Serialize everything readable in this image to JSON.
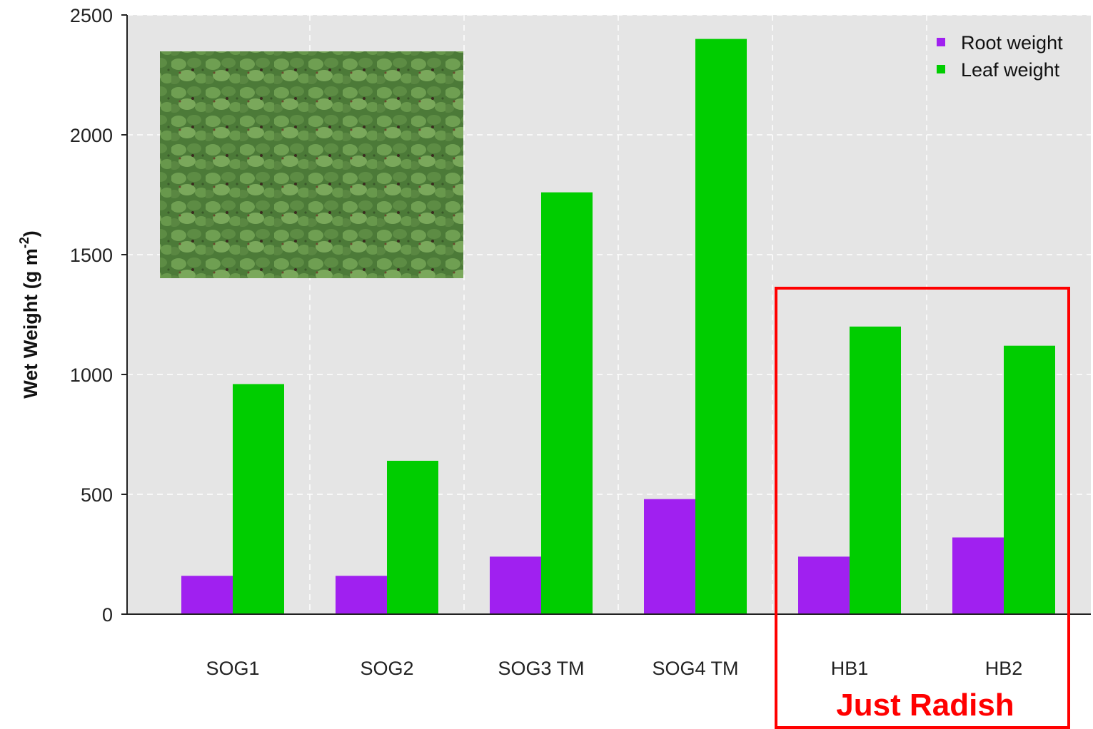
{
  "chart_data": {
    "type": "bar",
    "title": "",
    "xlabel": "",
    "ylabel": "Wet Weight (g m",
    "ylabel_superscript": "-2",
    "ylabel_close": ")",
    "categories": [
      "SOG1",
      "SOG2",
      "SOG3 TM",
      "SOG4 TM",
      "HB1",
      "HB2"
    ],
    "series": [
      {
        "name": "Root weight",
        "values": [
          160,
          160,
          240,
          480,
          240,
          320
        ]
      },
      {
        "name": "Leaf weight",
        "values": [
          960,
          640,
          1760,
          2400,
          1200,
          1120
        ]
      }
    ],
    "ylim": [
      0,
      2500
    ],
    "yticks": [
      0,
      500,
      1000,
      1500,
      2000,
      2500
    ],
    "grid": true,
    "legend_position": "top-right",
    "annotation": "Just Radish",
    "inset_photo": "radish-field-photo",
    "colors": {
      "root": "#a020f0",
      "leaf": "#00cd00",
      "panel": "#e5e5e5",
      "grid": "#ffffff",
      "annotation": "#ff0000"
    }
  }
}
